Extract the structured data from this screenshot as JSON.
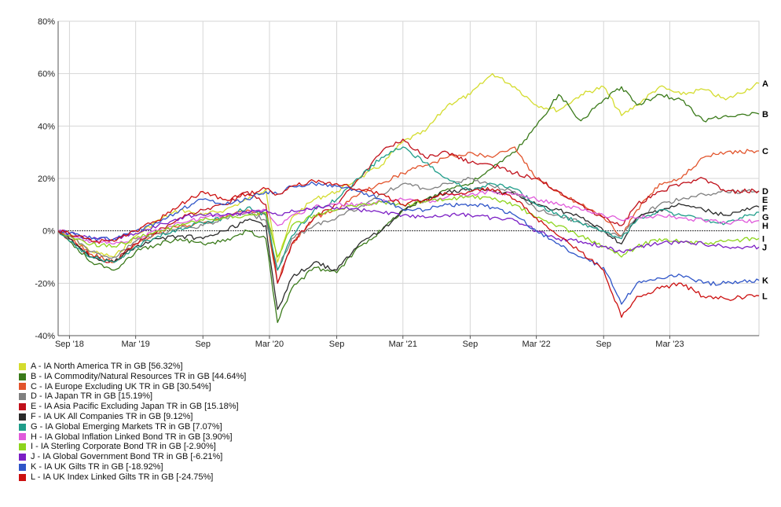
{
  "chart_data": {
    "type": "line",
    "ylim": [
      -40,
      80
    ],
    "y_ticks": [
      "80%",
      "60%",
      "40%",
      "20%",
      "0%",
      "-20%",
      "-40%"
    ],
    "y_tick_values": [
      80,
      60,
      40,
      20,
      0,
      -20,
      -40
    ],
    "x_ticks": [
      "Sep '18",
      "Mar '19",
      "Sep",
      "Mar '20",
      "Sep",
      "Mar '21",
      "Sep",
      "Mar '22",
      "Sep",
      "Mar '23"
    ],
    "x_tick_dates": [
      "2018-09-01",
      "2019-03-01",
      "2019-09-01",
      "2020-03-01",
      "2020-09-01",
      "2021-03-01",
      "2021-09-01",
      "2022-03-01",
      "2022-09-01",
      "2023-03-01"
    ],
    "x_range": [
      "2018-08-01",
      "2023-10-31"
    ],
    "grid": true,
    "legend_position": "bottom-left",
    "dates": [
      "2018-08-01",
      "2018-09-01",
      "2018-11-01",
      "2019-01-01",
      "2019-03-01",
      "2019-05-01",
      "2019-07-01",
      "2019-09-01",
      "2019-11-01",
      "2020-01-01",
      "2020-02-20",
      "2020-03-23",
      "2020-05-01",
      "2020-07-01",
      "2020-09-01",
      "2020-11-01",
      "2021-01-01",
      "2021-03-01",
      "2021-05-01",
      "2021-07-01",
      "2021-09-01",
      "2021-11-01",
      "2022-01-01",
      "2022-03-01",
      "2022-05-01",
      "2022-07-01",
      "2022-09-01",
      "2022-10-20",
      "2022-12-01",
      "2023-02-01",
      "2023-04-01",
      "2023-06-01",
      "2023-08-01",
      "2023-10-31"
    ],
    "series": [
      {
        "name": "A - IA North America TR in GB [56.32%]",
        "label": "A",
        "color": "#d4dc2e",
        "values": [
          0,
          -2,
          -8,
          -10,
          -2,
          4,
          8,
          6,
          8,
          12,
          16,
          -12,
          5,
          12,
          15,
          20,
          25,
          34,
          38,
          48,
          52,
          60,
          55,
          48,
          46,
          52,
          55,
          44,
          48,
          55,
          52,
          54,
          50,
          56.3
        ]
      },
      {
        "name": "B - IA Commodity/Natural Resources TR in GB [44.64%]",
        "label": "B",
        "color": "#3a7a1a",
        "values": [
          0,
          -4,
          -12,
          -15,
          -8,
          -5,
          -3,
          -5,
          -4,
          0,
          -3,
          -35,
          -22,
          -14,
          -16,
          -6,
          0,
          8,
          12,
          16,
          18,
          24,
          30,
          40,
          52,
          42,
          50,
          55,
          48,
          52,
          50,
          42,
          44,
          44.6
        ]
      },
      {
        "name": "C - IA Europe Excluding UK TR in GB [30.54%]",
        "label": "C",
        "color": "#e2542c",
        "values": [
          0,
          -3,
          -9,
          -12,
          -5,
          -1,
          2,
          3,
          5,
          8,
          6,
          -20,
          -5,
          5,
          8,
          14,
          18,
          22,
          25,
          28,
          30,
          28,
          32,
          20,
          15,
          10,
          5,
          -2,
          8,
          18,
          20,
          28,
          30,
          30.5
        ]
      },
      {
        "name": "D - IA Japan TR in GB [15.19%]",
        "label": "D",
        "color": "#808080",
        "values": [
          0,
          -2,
          -8,
          -10,
          -4,
          -1,
          1,
          2,
          5,
          7,
          4,
          -15,
          -3,
          2,
          5,
          9,
          14,
          18,
          16,
          18,
          20,
          17,
          15,
          8,
          6,
          3,
          0,
          -2,
          5,
          10,
          12,
          14,
          15,
          15.2
        ]
      },
      {
        "name": "E - IA Asia Pacific Excluding Japan TR in GB [15.18%]",
        "label": "E",
        "color": "#c0101a",
        "values": [
          0,
          -3,
          -10,
          -12,
          -5,
          0,
          5,
          8,
          10,
          15,
          10,
          -20,
          -5,
          5,
          10,
          20,
          30,
          35,
          28,
          30,
          26,
          25,
          22,
          20,
          15,
          10,
          5,
          2,
          10,
          15,
          18,
          20,
          15,
          15.2
        ]
      },
      {
        "name": "F - IA UK All Companies TR in GB [9.12%]",
        "label": "F",
        "color": "#2b2b2b",
        "values": [
          0,
          -3,
          -10,
          -12,
          -6,
          -3,
          -2,
          -3,
          0,
          4,
          2,
          -30,
          -18,
          -12,
          -15,
          -5,
          0,
          8,
          12,
          15,
          16,
          15,
          14,
          10,
          8,
          5,
          0,
          -5,
          5,
          8,
          10,
          8,
          6,
          9.1
        ]
      },
      {
        "name": "G - IA Global Emerging Markets TR in GB [7.07%]",
        "label": "G",
        "color": "#1f9d8a",
        "values": [
          0,
          -4,
          -10,
          -12,
          -6,
          -2,
          1,
          3,
          5,
          9,
          6,
          -15,
          -2,
          8,
          12,
          20,
          28,
          32,
          26,
          20,
          15,
          18,
          16,
          10,
          6,
          3,
          0,
          -3,
          4,
          8,
          6,
          4,
          3,
          7.1
        ]
      },
      {
        "name": "H - IA Global Inflation Linked Bond TR in GB [3.90%]",
        "label": "H",
        "color": "#e05adb",
        "values": [
          0,
          -2,
          -4,
          -5,
          -3,
          0,
          3,
          5,
          6,
          7,
          8,
          2,
          6,
          9,
          10,
          10,
          11,
          12,
          11,
          13,
          14,
          15,
          14,
          12,
          10,
          8,
          6,
          4,
          5,
          6,
          5,
          4,
          3,
          3.9
        ]
      },
      {
        "name": "I - IA Sterling Corporate Bond TR in GB [-2.90%]",
        "label": "I",
        "color": "#8dd41c",
        "values": [
          0,
          -2,
          -5,
          -6,
          -3,
          0,
          2,
          4,
          5,
          6,
          7,
          -10,
          2,
          6,
          8,
          10,
          11,
          10,
          11,
          12,
          13,
          12,
          10,
          5,
          2,
          -2,
          -6,
          -10,
          -6,
          -3,
          -4,
          -5,
          -4,
          -2.9
        ]
      },
      {
        "name": "J - IA Global Government Bond TR in GB [-6.21%]",
        "label": "J",
        "color": "#7b1ec4",
        "values": [
          0,
          -1,
          -3,
          -3,
          -1,
          2,
          5,
          6,
          6,
          7,
          8,
          6,
          8,
          9,
          9,
          8,
          7,
          6,
          5,
          6,
          6,
          5,
          4,
          0,
          -3,
          -4,
          -6,
          -8,
          -6,
          -5,
          -4,
          -5,
          -6,
          -6.2
        ]
      },
      {
        "name": "K - IA UK Gilts TR in GB [-18.92%]",
        "label": "K",
        "color": "#2f55c8",
        "values": [
          0,
          -1,
          -3,
          -3,
          0,
          3,
          8,
          12,
          10,
          12,
          15,
          14,
          17,
          18,
          17,
          15,
          12,
          8,
          8,
          10,
          10,
          9,
          6,
          0,
          -5,
          -10,
          -14,
          -28,
          -20,
          -18,
          -17,
          -20,
          -20,
          -18.9
        ]
      },
      {
        "name": "L - IA UK Index Linked Gilts TR in GB [-24.75%]",
        "label": "L",
        "color": "#cc1010",
        "values": [
          0,
          -1,
          -4,
          -4,
          0,
          4,
          10,
          15,
          12,
          14,
          16,
          14,
          17,
          19,
          18,
          16,
          14,
          10,
          12,
          14,
          15,
          16,
          12,
          5,
          -2,
          -8,
          -15,
          -33,
          -25,
          -22,
          -20,
          -25,
          -26,
          -24.8
        ]
      }
    ]
  }
}
